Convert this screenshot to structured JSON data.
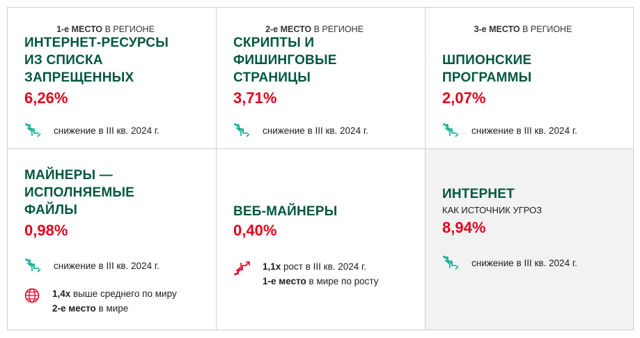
{
  "cards": [
    {
      "rank_bold": "1-е МЕСТО",
      "rank_rest": " В РЕГИОНЕ",
      "title_lines": [
        "ИНТЕРНЕТ-РЕСУРСЫ",
        "ИЗ СПИСКА",
        "ЗАПРЕЩЕННЫХ"
      ],
      "value": "6,26%",
      "trend_icon": "trend-down-icon",
      "trend_text": "снижение в III кв. 2024 г."
    },
    {
      "rank_bold": "2-е МЕСТО",
      "rank_rest": " В РЕГИОНЕ",
      "title_lines": [
        "СКРИПТЫ И",
        "ФИШИНГОВЫЕ",
        "СТРАНИЦЫ"
      ],
      "value": "3,71%",
      "trend_icon": "trend-down-icon",
      "trend_text": "снижение в III кв. 2024 г."
    },
    {
      "rank_bold": "3-е МЕСТО",
      "rank_rest": " В РЕГИОНЕ",
      "title_lines": [
        "ШПИОНСКИЕ",
        "ПРОГРАММЫ"
      ],
      "value": "2,07%",
      "trend_icon": "trend-down-icon",
      "trend_text": "снижение в III кв. 2024 г."
    },
    {
      "title_lines": [
        "МАЙНЕРЫ —",
        "ИСПОЛНЯЕМЫЕ",
        "ФАЙЛЫ"
      ],
      "value": "0,98%",
      "trend_icon": "trend-down-icon",
      "trend_text": "снижение в III кв. 2024 г.",
      "note_icon": "globe-icon",
      "note_line1_bold": "1,4x",
      "note_line1_rest": " выше среднего по миру",
      "note_line2_bold": "2-е место",
      "note_line2_rest": " в мире"
    },
    {
      "title_lines": [
        "ВЕБ-МАЙНЕРЫ"
      ],
      "value": "0,40%",
      "trend_icon": "trend-up-icon",
      "trend_line1_bold": "1,1x",
      "trend_line1_rest": " рост в III кв. 2024 г.",
      "trend_line2_bold": "1-е место",
      "trend_line2_rest": " в мире по росту"
    },
    {
      "title_lines": [
        "ИНТЕРНЕТ"
      ],
      "subtitle": "КАК ИСТОЧНИК УГРОЗ",
      "value": "8,94%",
      "trend_icon": "trend-down-icon",
      "trend_text": "снижение в III кв. 2024 г."
    }
  ],
  "colors": {
    "title_green": "#00573d",
    "value_red": "#e4001b",
    "icon_green": "#00a88e",
    "icon_red": "#e4001b",
    "shaded_bg": "#f2f2f2",
    "border": "#cfcfcf"
  }
}
